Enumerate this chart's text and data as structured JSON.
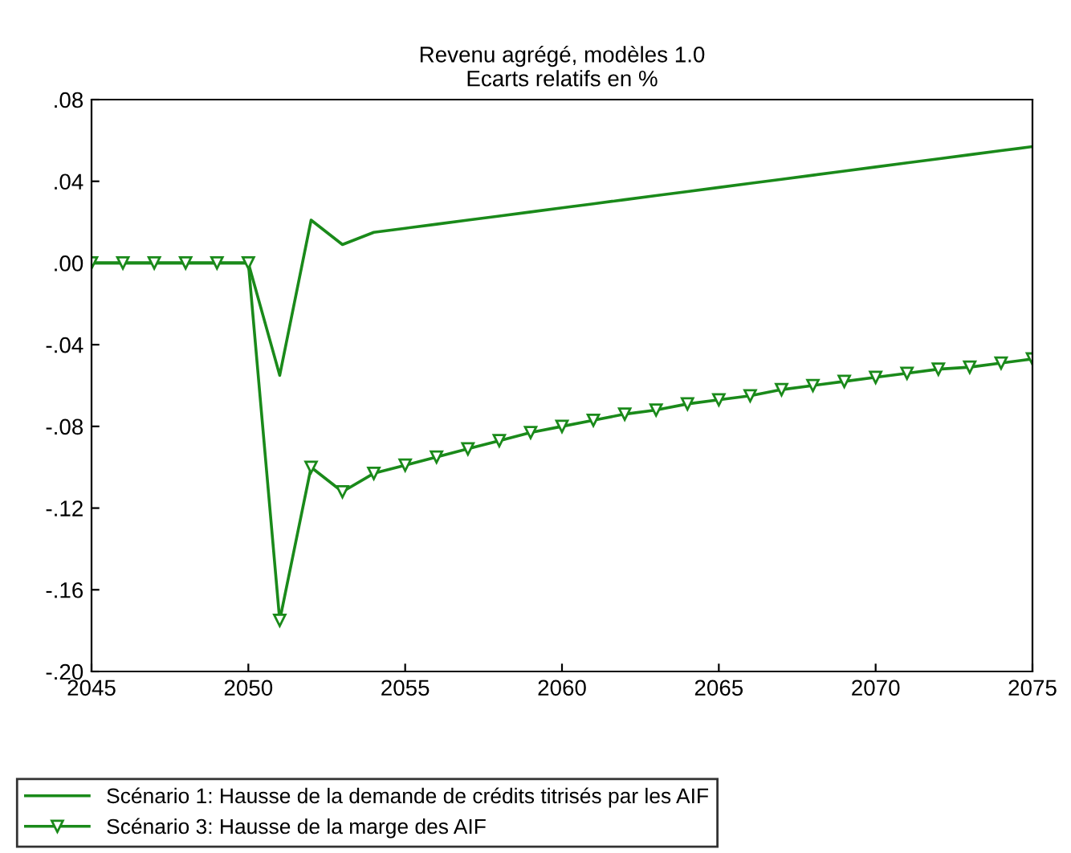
{
  "chart_data": {
    "type": "line",
    "title": "Revenu agrégé, modèles 1.0\nEcarts relatifs en %",
    "x": [
      2045,
      2046,
      2047,
      2048,
      2049,
      2050,
      2051,
      2052,
      2053,
      2054,
      2055,
      2056,
      2057,
      2058,
      2059,
      2060,
      2061,
      2062,
      2063,
      2064,
      2065,
      2066,
      2067,
      2068,
      2069,
      2070,
      2071,
      2072,
      2073,
      2074,
      2075
    ],
    "series": [
      {
        "name": "Scénario 1: Hausse de la demande de crédits titrisés par les AIF",
        "color": "#1a8a1a",
        "marker": "none",
        "values": [
          0,
          0,
          0,
          0,
          0,
          0,
          -0.055,
          0.021,
          0.009,
          0.015,
          0.017,
          0.019,
          0.021,
          0.023,
          0.025,
          0.027,
          0.029,
          0.031,
          0.033,
          0.035,
          0.037,
          0.039,
          0.041,
          0.043,
          0.045,
          0.047,
          0.049,
          0.051,
          0.053,
          0.055,
          0.057
        ]
      },
      {
        "name": "Scénario 3: Hausse de la marge des AIF",
        "color": "#1a8a1a",
        "marker": "triangle",
        "values": [
          0,
          0,
          0,
          0,
          0,
          0,
          -0.175,
          -0.1,
          -0.112,
          -0.103,
          -0.099,
          -0.095,
          -0.091,
          -0.087,
          -0.083,
          -0.08,
          -0.077,
          -0.074,
          -0.072,
          -0.069,
          -0.067,
          -0.065,
          -0.062,
          -0.06,
          -0.058,
          -0.056,
          -0.054,
          -0.052,
          -0.051,
          -0.049,
          -0.047
        ]
      }
    ],
    "xlim": [
      2045,
      2075
    ],
    "xticks": [
      2045,
      2050,
      2055,
      2060,
      2065,
      2070,
      2075
    ],
    "ylim": [
      -0.2,
      0.08
    ],
    "yticks": [
      {
        "value": -0.2,
        "label": "-.20"
      },
      {
        "value": -0.16,
        "label": "-.16"
      },
      {
        "value": -0.12,
        "label": "-.12"
      },
      {
        "value": -0.08,
        "label": "-.08"
      },
      {
        "value": -0.04,
        "label": "-.04"
      },
      {
        "value": 0.0,
        "label": ".00"
      },
      {
        "value": 0.04,
        "label": ".04"
      },
      {
        "value": 0.08,
        "label": ".08"
      }
    ],
    "grid": false,
    "legend": "bottom",
    "line_style": "solid"
  }
}
